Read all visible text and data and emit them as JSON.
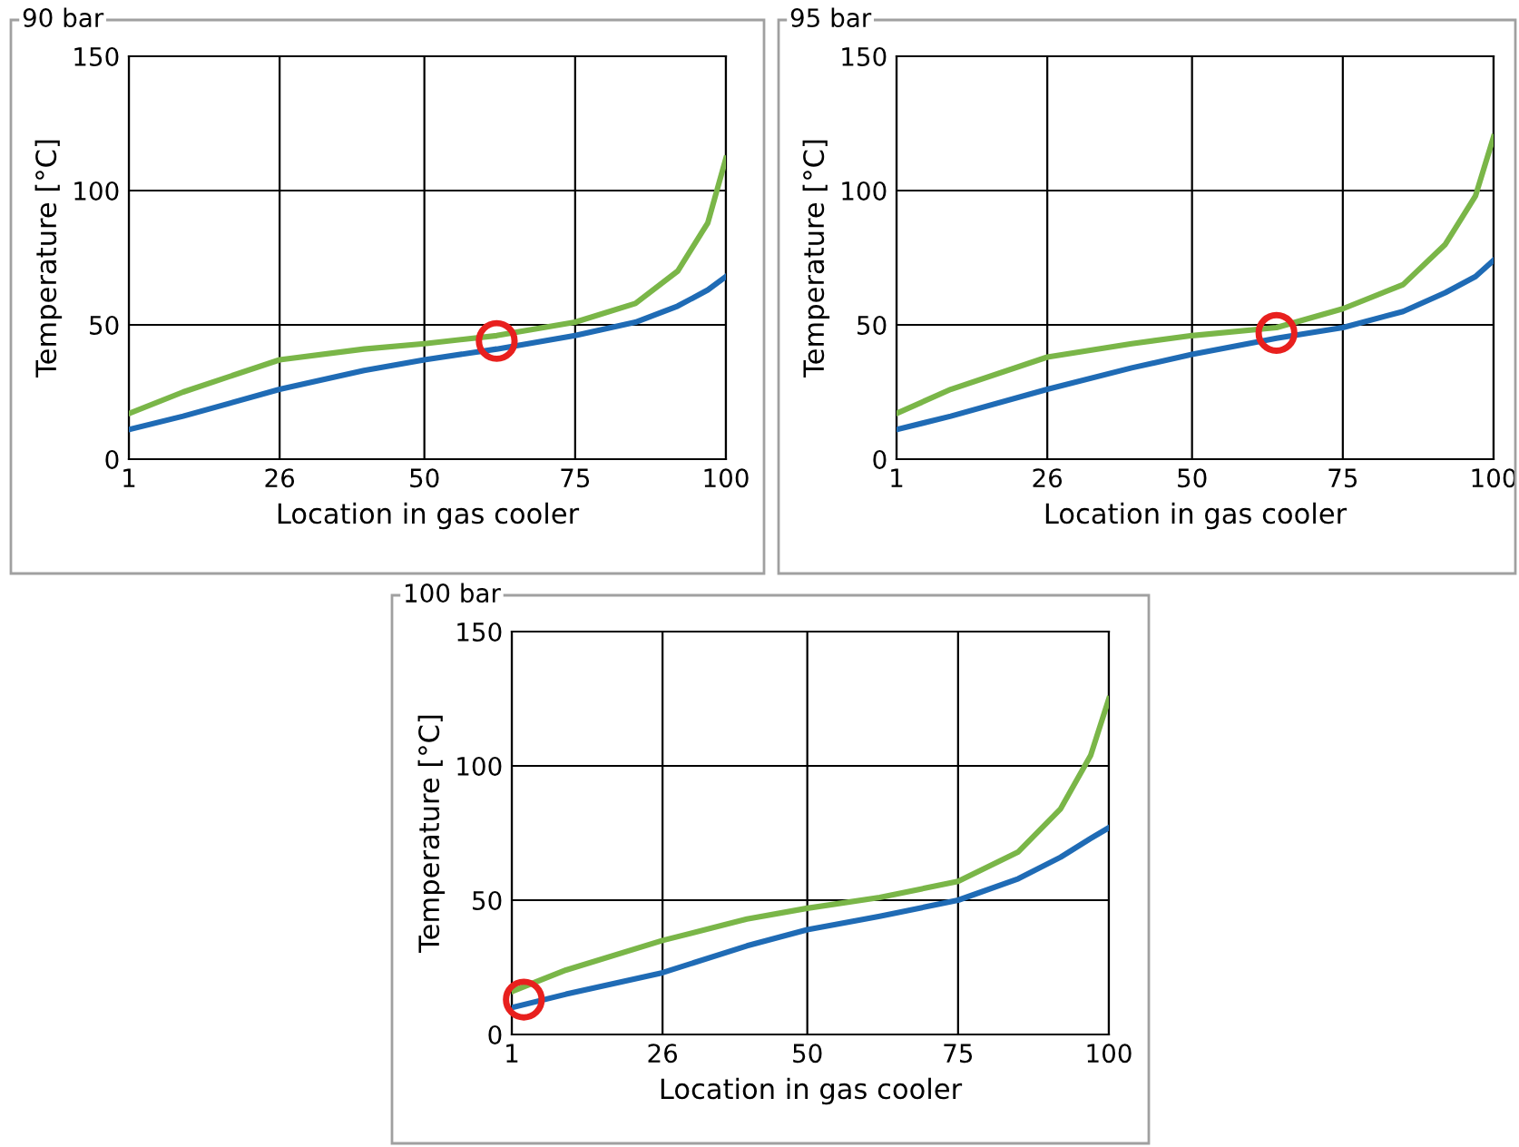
{
  "chart_data": [
    {
      "type": "line",
      "title": "90 bar",
      "xlabel": "Location in gas cooler",
      "ylabel": "Temperature [°C]",
      "xlim": [
        1,
        100
      ],
      "ylim": [
        0,
        150
      ],
      "xticks": [
        1,
        26,
        50,
        75,
        100
      ],
      "yticks": [
        0,
        50,
        100,
        150
      ],
      "grid": true,
      "legend": false,
      "line_style": "solid",
      "series": [
        {
          "color": "#7ab648",
          "x": [
            1,
            10,
            26,
            40,
            50,
            62,
            75,
            85,
            92,
            97,
            100
          ],
          "values": [
            17,
            25,
            37,
            41,
            43,
            46,
            51,
            58,
            70,
            88,
            112
          ]
        },
        {
          "color": "#1f6bb5",
          "x": [
            1,
            10,
            26,
            40,
            50,
            62,
            75,
            85,
            92,
            97,
            100
          ],
          "values": [
            11,
            16,
            26,
            33,
            37,
            41,
            46,
            51,
            57,
            63,
            68
          ]
        },
        {
          "type": "scatter",
          "marker": "circle",
          "color": "#e8201e",
          "x": [
            62
          ],
          "values": [
            44
          ]
        }
      ]
    },
    {
      "type": "line",
      "title": "95 bar",
      "xlabel": "Location in gas cooler",
      "ylabel": "Temperature [°C]",
      "xlim": [
        1,
        100
      ],
      "ylim": [
        0,
        150
      ],
      "xticks": [
        1,
        26,
        50,
        75,
        100
      ],
      "yticks": [
        0,
        50,
        100,
        150
      ],
      "grid": true,
      "legend": false,
      "line_style": "solid",
      "series": [
        {
          "color": "#7ab648",
          "x": [
            1,
            10,
            26,
            40,
            50,
            64,
            75,
            85,
            92,
            97,
            100
          ],
          "values": [
            17,
            26,
            38,
            43,
            46,
            49,
            56,
            65,
            80,
            98,
            120
          ]
        },
        {
          "color": "#1f6bb5",
          "x": [
            1,
            10,
            26,
            40,
            50,
            64,
            75,
            85,
            92,
            97,
            100
          ],
          "values": [
            11,
            16,
            26,
            34,
            39,
            45,
            49,
            55,
            62,
            68,
            74
          ]
        },
        {
          "type": "scatter",
          "marker": "circle",
          "color": "#e8201e",
          "x": [
            64
          ],
          "values": [
            47
          ]
        }
      ]
    },
    {
      "type": "line",
      "title": "100 bar",
      "xlabel": "Location in gas cooler",
      "ylabel": "Temperature [°C]",
      "xlim": [
        1,
        100
      ],
      "ylim": [
        0,
        150
      ],
      "xticks": [
        1,
        26,
        50,
        75,
        100
      ],
      "yticks": [
        0,
        50,
        100,
        150
      ],
      "grid": true,
      "legend": false,
      "line_style": "solid",
      "series": [
        {
          "color": "#7ab648",
          "x": [
            1,
            10,
            26,
            40,
            50,
            62,
            75,
            85,
            92,
            97,
            100
          ],
          "values": [
            16,
            24,
            35,
            43,
            47,
            51,
            57,
            68,
            84,
            104,
            125
          ]
        },
        {
          "color": "#1f6bb5",
          "x": [
            1,
            10,
            26,
            40,
            50,
            62,
            75,
            85,
            92,
            97,
            100
          ],
          "values": [
            10,
            15,
            23,
            33,
            39,
            44,
            50,
            58,
            66,
            73,
            77
          ]
        },
        {
          "type": "scatter",
          "marker": "circle",
          "color": "#e8201e",
          "x": [
            3
          ],
          "values": [
            13
          ]
        }
      ]
    }
  ]
}
